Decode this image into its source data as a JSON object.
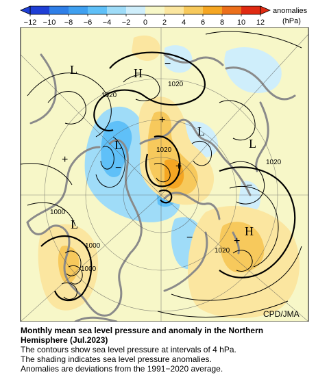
{
  "colorbar": {
    "ticks": [
      "−12",
      "−10",
      "−8",
      "−6",
      "−4",
      "−2",
      "0",
      "2",
      "4",
      "6",
      "8",
      "10",
      "12"
    ],
    "units_label_line1": "anomalies",
    "units_label_line2": "(hPa)",
    "colors": [
      "#1f3fd6",
      "#2f7fe8",
      "#3fa0f0",
      "#5fc0f8",
      "#9fdcf8",
      "#cfeefb",
      "#f7f7c8",
      "#fbe6a0",
      "#f7c95c",
      "#f5a623",
      "#ec6f1b",
      "#e02a12"
    ]
  },
  "map": {
    "credit": "CPD/JMA",
    "pressure_labels": [
      "1020",
      "1020",
      "1020",
      "1020",
      "1020",
      "1000",
      "1000",
      "1000"
    ],
    "center_labels": [
      "L",
      "H",
      "L",
      "L",
      "L",
      "H",
      "L"
    ]
  },
  "caption": {
    "title_line1": "Monthly mean sea level pressure and anomaly in the Northern",
    "title_line2": "Hemisphere (Jul.2023)",
    "line1": "The contours show sea level pressure at intervals of 4 hPa.",
    "line2": "The shading indicates sea level pressure anomalies.",
    "line3": "Anomalies are deviations from the 1991−2020 average."
  }
}
